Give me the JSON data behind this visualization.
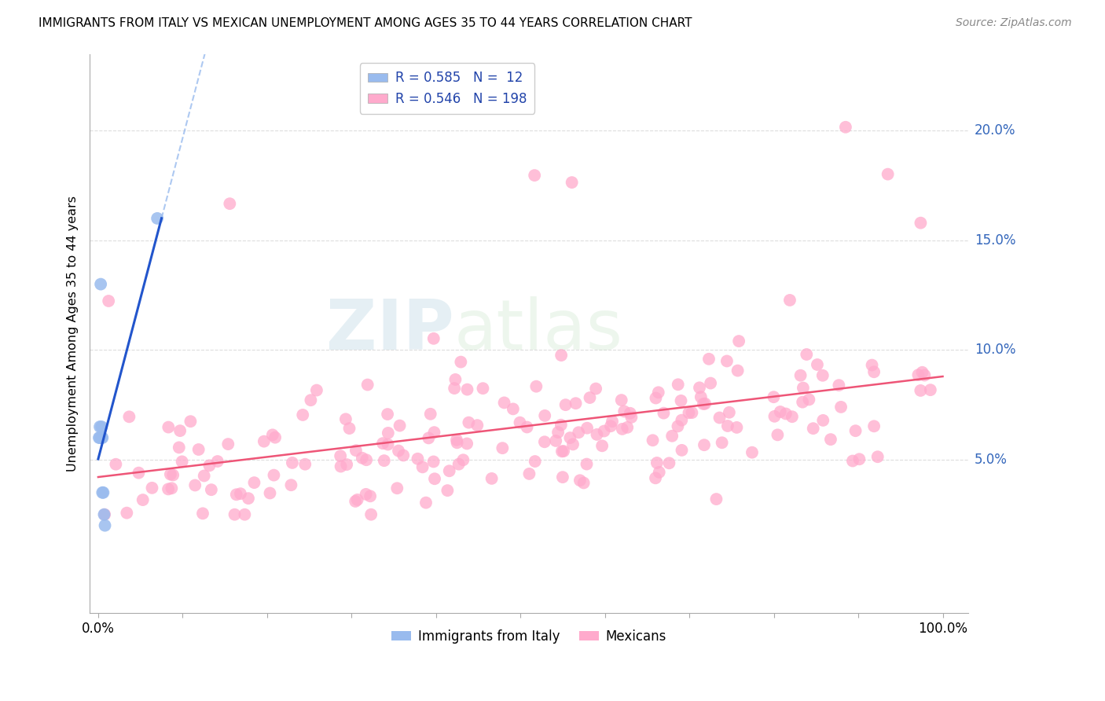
{
  "title": "IMMIGRANTS FROM ITALY VS MEXICAN UNEMPLOYMENT AMONG AGES 35 TO 44 YEARS CORRELATION CHART",
  "source": "Source: ZipAtlas.com",
  "ylabel": "Unemployment Among Ages 35 to 44 years",
  "ylabel_right_ticks": [
    "5.0%",
    "10.0%",
    "15.0%",
    "20.0%"
  ],
  "ylabel_right_vals": [
    0.05,
    0.1,
    0.15,
    0.2
  ],
  "legend_italy_R": "0.585",
  "legend_italy_N": "12",
  "legend_mex_R": "0.546",
  "legend_mex_N": "198",
  "blue_scatter_color": "#99BBEE",
  "pink_scatter_color": "#FFAACC",
  "blue_line_color": "#2255CC",
  "pink_line_color": "#EE5577",
  "grid_color": "#DDDDDD",
  "watermark_color": "#BBDDEE",
  "italy_x": [
    0.001,
    0.002,
    0.002,
    0.003,
    0.004,
    0.004,
    0.005,
    0.005,
    0.006,
    0.007,
    0.008,
    0.07
  ],
  "italy_y": [
    0.06,
    0.06,
    0.065,
    0.13,
    0.06,
    0.065,
    0.06,
    0.035,
    0.035,
    0.025,
    0.02,
    0.16
  ],
  "mex_seed": 123,
  "xlim": [
    -0.01,
    1.03
  ],
  "ylim": [
    -0.02,
    0.235
  ],
  "xticks": [
    0.0,
    0.1,
    0.2,
    0.3,
    0.4,
    0.5,
    0.6,
    0.7,
    0.8,
    0.9,
    1.0
  ],
  "figsize": [
    14.06,
    8.92
  ],
  "dpi": 100
}
